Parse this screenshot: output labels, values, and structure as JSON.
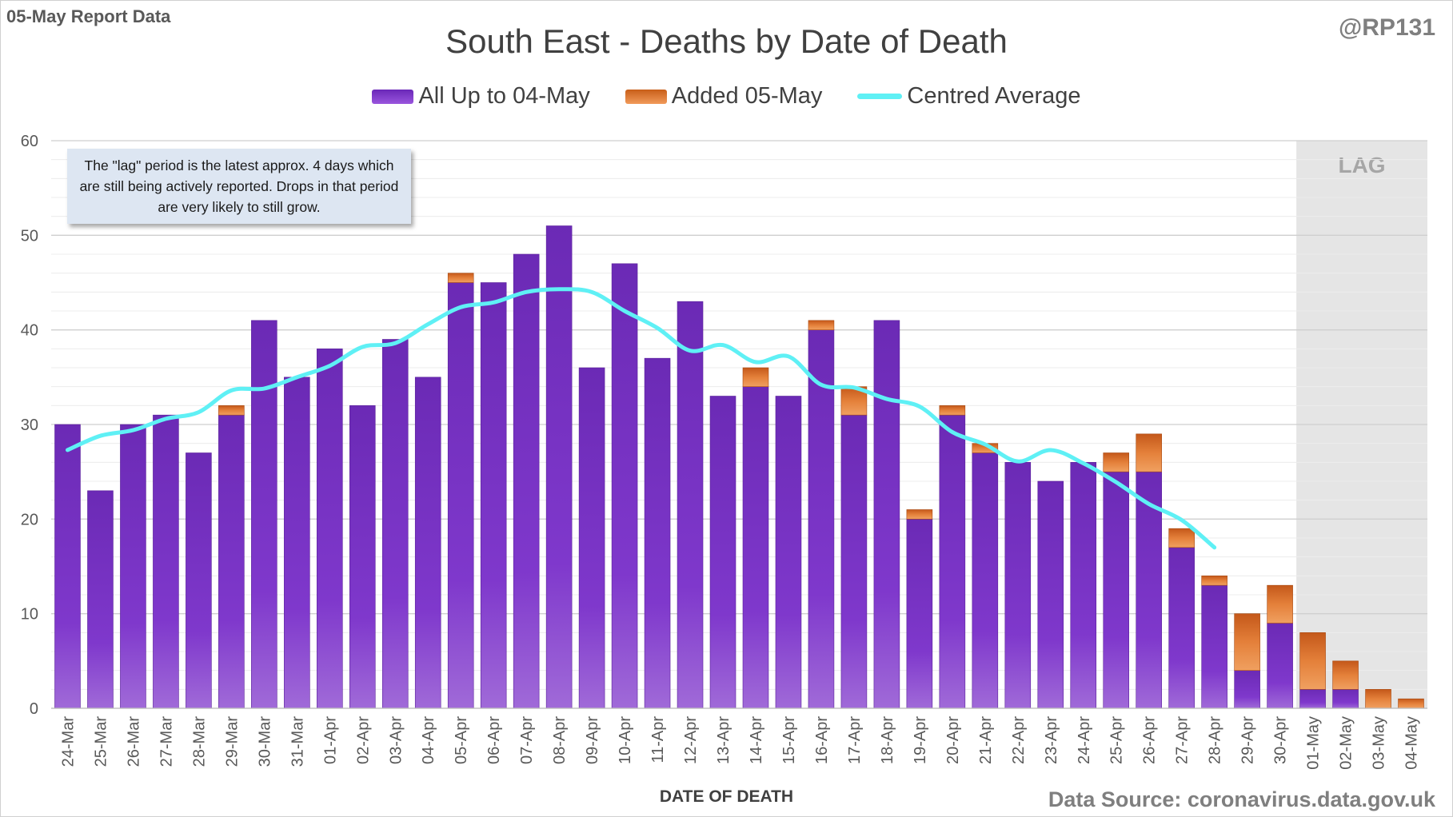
{
  "corner_left": "05-May Report Data",
  "corner_right": "@RP131",
  "source_text": "Data Source: coronavirus.data.gov.uk",
  "note_text": "The \"lag\" period is the latest approx. 4 days which are still being actively reported.  Drops in that period are very likely to still grow.",
  "colors": {
    "all_up_to": "#7a36c8",
    "added": "#e0772a",
    "average": "#5ff0f5",
    "lag_shade": "#e5e5e5",
    "grid": "#d9d9d9"
  },
  "chart_data": {
    "type": "bar",
    "title": "South East - Deaths by Date of Death",
    "xlabel": "DATE OF DEATH",
    "ylabel": "",
    "ylim": [
      0,
      60
    ],
    "yticks": [
      0,
      10,
      20,
      30,
      40,
      50,
      60
    ],
    "stacked": true,
    "lag_label": "LAG",
    "lag_categories": [
      "01-May",
      "02-May",
      "03-May",
      "04-May"
    ],
    "legend_position": "top-center",
    "categories": [
      "24-Mar",
      "25-Mar",
      "26-Mar",
      "27-Mar",
      "28-Mar",
      "29-Mar",
      "30-Mar",
      "31-Mar",
      "01-Apr",
      "02-Apr",
      "03-Apr",
      "04-Apr",
      "05-Apr",
      "06-Apr",
      "07-Apr",
      "08-Apr",
      "09-Apr",
      "10-Apr",
      "11-Apr",
      "12-Apr",
      "13-Apr",
      "14-Apr",
      "15-Apr",
      "16-Apr",
      "17-Apr",
      "18-Apr",
      "19-Apr",
      "20-Apr",
      "21-Apr",
      "22-Apr",
      "23-Apr",
      "24-Apr",
      "25-Apr",
      "26-Apr",
      "27-Apr",
      "28-Apr",
      "29-Apr",
      "30-Apr",
      "01-May",
      "02-May",
      "03-May",
      "04-May"
    ],
    "series": [
      {
        "name": "All Up to 04-May",
        "kind": "bar",
        "values": [
          30,
          23,
          30,
          31,
          27,
          31,
          41,
          35,
          38,
          32,
          39,
          35,
          45,
          45,
          48,
          51,
          36,
          47,
          37,
          43,
          33,
          34,
          33,
          40,
          31,
          41,
          20,
          31,
          27,
          26,
          24,
          26,
          25,
          25,
          17,
          13,
          4,
          9,
          2,
          2,
          0,
          0
        ]
      },
      {
        "name": "Added 05-May",
        "kind": "bar",
        "values": [
          0,
          0,
          0,
          0,
          0,
          1,
          0,
          0,
          0,
          0,
          0,
          0,
          1,
          0,
          0,
          0,
          0,
          0,
          0,
          0,
          0,
          2,
          0,
          1,
          3,
          0,
          1,
          1,
          1,
          0,
          0,
          0,
          2,
          4,
          2,
          1,
          6,
          4,
          6,
          3,
          2,
          1
        ]
      },
      {
        "name": "Centred Average",
        "kind": "line",
        "values": [
          27.3,
          28.8,
          29.4,
          30.6,
          31.3,
          33.6,
          33.8,
          35.0,
          36.2,
          38.2,
          38.6,
          40.6,
          42.4,
          42.9,
          44.0,
          44.3,
          44.0,
          42.0,
          40.2,
          37.8,
          38.4,
          36.6,
          37.2,
          34.2,
          33.9,
          32.7,
          31.9,
          29.2,
          27.9,
          26.1,
          27.3,
          25.9,
          23.9,
          21.6,
          19.9,
          17.0,
          null,
          null,
          null,
          null,
          null,
          null
        ]
      }
    ]
  }
}
